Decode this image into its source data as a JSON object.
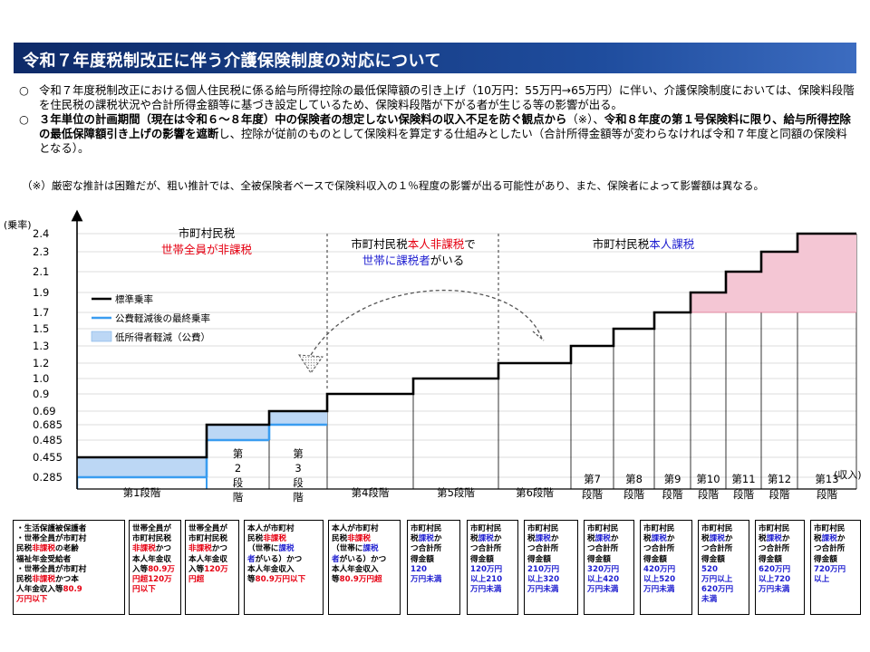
{
  "title": "令和７年度税制改正に伴う介護保険制度の対応について",
  "bullet1": {
    "marker": "○",
    "text": "令和７年度税制改正における個人住民税に係る給与所得控除の最低保障額の引き上げ（10万円：55万円→65万円）に伴い、介護保険制度においては、保険料段階を住民税の課税状況や合計所得金額等に基づき設定しているため、保険料段階が下がる者が生じる等の影響が出る。"
  },
  "bullet2": {
    "marker": "○",
    "bold1": "３年単位の計画期間（現在は令和６～８年度）中の保険者の想定しない保険料の収入不足を防ぐ観点から",
    "mid": "（※）、",
    "bold2": "令和８年度の第１号保険料に限り、給与所得控除の最低保障額引き上げの影響を遮断",
    "tail": "し、控除が従前のものとして保険料を算定する仕組みとしたい（合計所得金額等が変わらなければ令和７年度と同額の保険料となる）。"
  },
  "note": "（※）厳密な推計は困難だが、粗い推計では、全被保険者ベースで保険料収入の１％程度の影響が出る可能性があり、また、保険者によって影響額は異なる。",
  "chart_data": {
    "type": "step",
    "ylabel": "(乗率)",
    "xlabel": "(収入)",
    "yticks": [
      "2.4",
      "2.3",
      "2.1",
      "1.9",
      "1.7",
      "1.5",
      "1.3",
      "1.2",
      "1.0",
      "0.9",
      "0.69",
      "0.685",
      "0.485",
      "0.455",
      "0.285"
    ],
    "stages": [
      {
        "label": "第1段階",
        "standard": 0.455,
        "final": 0.285
      },
      {
        "label": "第2段階",
        "standard": 0.685,
        "final": 0.485
      },
      {
        "label": "第3段階",
        "standard": 0.69,
        "final": 0.685
      },
      {
        "label": "第4段階",
        "standard": 0.9
      },
      {
        "label": "第5段階",
        "standard": 1.0
      },
      {
        "label": "第6段階",
        "standard": 1.2
      },
      {
        "label": "第7段階",
        "standard": 1.3
      },
      {
        "label": "第8段階",
        "standard": 1.5
      },
      {
        "label": "第9段階",
        "standard": 1.7
      },
      {
        "label": "第10段階",
        "standard": 1.9
      },
      {
        "label": "第11段階",
        "standard": 2.1
      },
      {
        "label": "第12段階",
        "standard": 2.3
      },
      {
        "label": "第13段階",
        "standard": 2.4
      }
    ],
    "legend": [
      {
        "label": "標準乗率",
        "color": "#000000"
      },
      {
        "label": "公費軽減後の最終乗率",
        "color": "#3a9df0"
      },
      {
        "label": "低所得者軽減（公費）",
        "color": "#bcd7f5"
      }
    ],
    "region_labels": {
      "r1_line1": "市町村民税",
      "r1_line2": "世帯全員が非課税",
      "r2_a": "市町村民税",
      "r2_b": "本人非課税",
      "r2_c": "で",
      "r2_d": "世帯に課税者",
      "r2_e": "がいる",
      "r3_a": "市町村民税",
      "r3_b": "本人課税"
    },
    "colors": {
      "high_fill": "#f4c6d4",
      "high_edge": "#e0708f",
      "low_fill": "#bcd7f5",
      "final_line": "#3a9df0"
    }
  },
  "desc": {
    "d1_l1": "・生活保護被保護者",
    "d1_l2a": "・世帯全員が",
    "d1_l2b": "市町村",
    "d1_l3a": "民税",
    "d1_l3b": "非課税",
    "d1_l3c": "の老齢",
    "d1_l4": "福祉年金受給者",
    "d1_l5": "・世帯全員が市町村",
    "d1_l6a": "民税",
    "d1_l6b": "非課税",
    "d1_l6c": "かつ本",
    "d1_l7": "人年金収入等",
    "d1_l7b": "80.9",
    "d1_l8": "万円以下",
    "d2_l1": "世帯全員が",
    "d2_l2": "市町村民税",
    "d2_l3a": "非課税",
    "d2_l3b": "かつ",
    "d2_l4": "本人年金収",
    "d2_l5a": "入等",
    "d2_l5b": "80.9万",
    "d2_l6": "円超120万",
    "d2_l7": "円以下",
    "d3_l1": "世帯全員が",
    "d3_l2": "市町村民税",
    "d3_l3a": "非課税",
    "d3_l3b": "かつ",
    "d3_l4": "本人年金収",
    "d3_l5a": "入等",
    "d3_l5b": "120万",
    "d3_l6": "円超",
    "d4_l1": "本人が市町村",
    "d4_l2a": "民税",
    "d4_l2b": "非課税",
    "d4_l3a": "（世帯に",
    "d4_l3b": "課税",
    "d4_l4a": "者",
    "d4_l4b": "がいる）かつ",
    "d4_l5": "本人年金収入",
    "d4_l6a": "等",
    "d4_l6b": "80.9万円以下",
    "d5_l1": "本人が市町村",
    "d5_l2a": "民税",
    "d5_l2b": "非課税",
    "d5_l3a": "（世帯に",
    "d5_l3b": "課税",
    "d5_l4a": "者",
    "d5_l4b": "がいる）かつ",
    "d5_l5": "本人年金収入",
    "d5_l6a": "等",
    "d5_l6b": "80.9万円超",
    "d6": [
      "市町村民",
      "税",
      "課税",
      "か",
      "つ合計所",
      "得金額",
      "120",
      "万円未満"
    ],
    "d7": [
      "市町村民",
      "税",
      "課税",
      "か",
      "つ合計所",
      "得金額",
      "120万円",
      "以上210",
      "万円未満"
    ],
    "d8": [
      "市町村民",
      "税",
      "課税",
      "か",
      "つ合計所",
      "得金額",
      "210万円",
      "以上320",
      "万円未満"
    ],
    "d9": [
      "市町村民",
      "税",
      "課税",
      "か",
      "つ合計所",
      "得金額",
      "320万円",
      "以上420",
      "万円未満"
    ],
    "d10": [
      "市町村民",
      "税",
      "課税",
      "か",
      "つ合計所",
      "得金額",
      "420万円",
      "以上520",
      "万円未満"
    ],
    "d11": [
      "市町村民",
      "税",
      "課税",
      "か",
      "つ合計所",
      "得金額",
      "520",
      "万円以上",
      "620万円",
      "未満"
    ],
    "d12": [
      "市町村民",
      "税",
      "課税",
      "か",
      "つ合計所",
      "得金額",
      "620万円",
      "以上720",
      "万円未満"
    ],
    "d13": [
      "市町村民",
      "税",
      "課税",
      "か",
      "つ合計所",
      "得金額",
      "720万円",
      "以上"
    ]
  }
}
